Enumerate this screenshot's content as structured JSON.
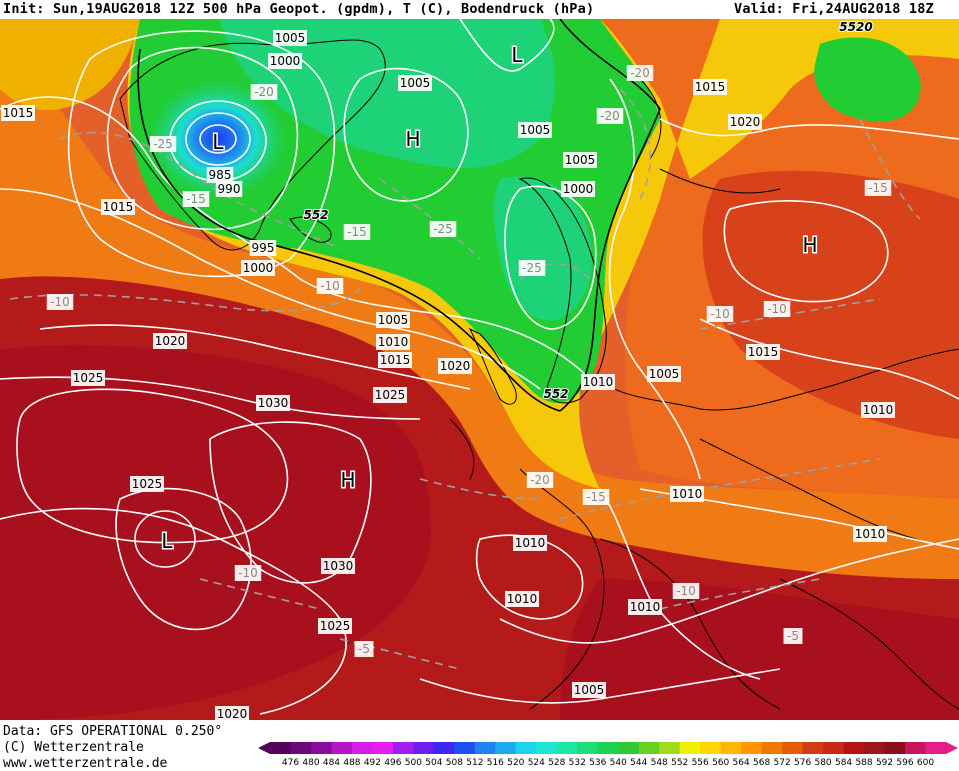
{
  "header": {
    "left": "Init: Sun,19AUG2018 12Z 500 hPa Geopot. (gpdm), T (C), Bodendruck (hPa)",
    "right": "Valid: Fri,24AUG2018 18Z"
  },
  "footer": {
    "data_line": "Data: GFS OPERATIONAL 0.250°",
    "copyright": "(C) Wetterzentrale",
    "url": "www.wetterzentrale.de"
  },
  "scale": {
    "labels": [
      "476",
      "480",
      "484",
      "488",
      "492",
      "496",
      "500",
      "504",
      "508",
      "512",
      "516",
      "520",
      "524",
      "528",
      "532",
      "536",
      "540",
      "544",
      "548",
      "552",
      "556",
      "560",
      "564",
      "568",
      "572",
      "576",
      "580",
      "584",
      "588",
      "592",
      "596",
      "600"
    ],
    "colors": [
      "#55005a",
      "#6a0a78",
      "#8a0aa0",
      "#b414c8",
      "#d21ee6",
      "#e61ef0",
      "#a01ef0",
      "#6e1ef0",
      "#3c28f0",
      "#1e50f0",
      "#1e82f0",
      "#1eaaf0",
      "#1ed2f0",
      "#1ee6d2",
      "#1ee6a0",
      "#1edc78",
      "#1ed250",
      "#32c832",
      "#64d21e",
      "#a0dc1e",
      "#f0f000",
      "#ffd700",
      "#ffb400",
      "#ff9600",
      "#f07800",
      "#e65a00",
      "#d23c14",
      "#c82814",
      "#b41414",
      "#a0141e",
      "#8c0f1e",
      "#c8145a",
      "#e61e8c"
    ]
  },
  "pressure_labels": [
    "1005",
    "1000",
    "1015",
    "1005",
    "1005",
    "1000",
    "1005",
    "985",
    "990",
    "1015",
    "995",
    "1000",
    "1015",
    "1020",
    "1005",
    "1010",
    "1015",
    "1020",
    "1025",
    "1020",
    "1025",
    "1030",
    "1025",
    "1030",
    "1025",
    "1020",
    "1010",
    "1005",
    "1010",
    "1015",
    "1010",
    "1010",
    "1010",
    "1010",
    "1005",
    "1010"
  ],
  "temperature_labels": [
    "-20",
    "-25",
    "-15",
    "-20",
    "-15",
    "-25",
    "-25",
    "-10",
    "-10",
    "-20",
    "-15",
    "-10",
    "-10",
    "-10",
    "-5",
    "-5",
    "-10",
    "-15",
    "-20"
  ],
  "centers": [
    {
      "type": "L"
    },
    {
      "type": "L"
    },
    {
      "type": "H"
    },
    {
      "type": "H"
    },
    {
      "type": "H"
    },
    {
      "type": "L"
    }
  ],
  "geopotential_labels": [
    "552",
    "552",
    "5520"
  ],
  "map": {
    "background_color": "#e2551e",
    "cold_color": "#22cc33",
    "warm_color": "#b51a1a"
  }
}
